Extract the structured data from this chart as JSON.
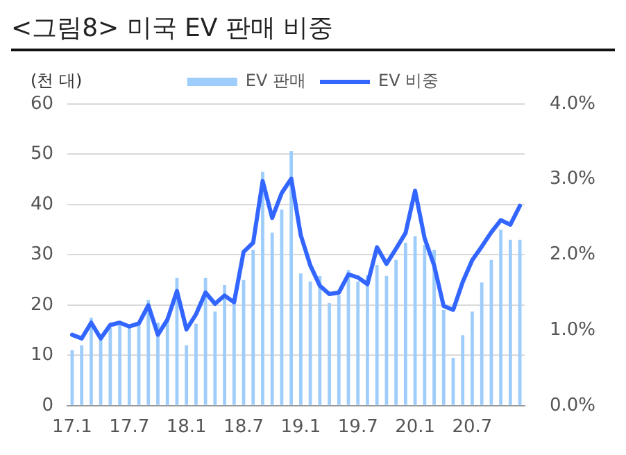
{
  "chart_data": {
    "type": "bar",
    "title": "<그림8> 미국 EV 판매 비중",
    "ylabel": "(천 대)",
    "categories": [
      "17.1",
      null,
      null,
      null,
      null,
      null,
      "17.7",
      null,
      null,
      null,
      null,
      null,
      "18.1",
      null,
      null,
      null,
      null,
      null,
      "18.7",
      null,
      null,
      null,
      null,
      null,
      "19.1",
      null,
      null,
      null,
      null,
      null,
      "19.7",
      null,
      null,
      null,
      null,
      null,
      "20.1",
      null,
      null,
      null,
      null,
      null,
      "20.7",
      null,
      null,
      null,
      null,
      null
    ],
    "series": [
      {
        "name": "EV 판매",
        "color": "#9fcdfb",
        "values": [
          11,
          12,
          17.5,
          13,
          15.5,
          16,
          15.5,
          16,
          21,
          16.5,
          17.5,
          25.4,
          12,
          16.3,
          25.4,
          18.7,
          24,
          21,
          25,
          31,
          46.5,
          34.4,
          39,
          50.6,
          26.3,
          24.7,
          25.8,
          20.4,
          22,
          27,
          24.7,
          26,
          28,
          25.8,
          29,
          32.4,
          33.7,
          32,
          31,
          19,
          9.5,
          14,
          18.7,
          24.5,
          29,
          35,
          33,
          33
        ]
      },
      {
        "name": "EV 비중",
        "type": "line",
        "axis": "y2",
        "color": "#3366ff",
        "values": [
          0.94,
          0.89,
          1.1,
          0.89,
          1.07,
          1.1,
          1.05,
          1.09,
          1.33,
          0.94,
          1.14,
          1.52,
          1.01,
          1.21,
          1.5,
          1.35,
          1.46,
          1.37,
          2.04,
          2.16,
          2.98,
          2.49,
          2.82,
          3.01,
          2.26,
          1.86,
          1.59,
          1.48,
          1.5,
          1.74,
          1.7,
          1.61,
          2.1,
          1.88,
          2.08,
          2.29,
          2.85,
          2.22,
          1.86,
          1.32,
          1.27,
          1.64,
          1.93,
          2.11,
          2.3,
          2.46,
          2.4,
          2.65
        ]
      }
    ],
    "ylim": [
      0,
      60
    ],
    "yticks": [
      0,
      10,
      20,
      30,
      40,
      50,
      60
    ],
    "y2lim": [
      0,
      4
    ],
    "y2ticks": [
      {
        "value": 0,
        "label": "0.0%"
      },
      {
        "value": 1,
        "label": "1.0%"
      },
      {
        "value": 2,
        "label": "2.0%"
      },
      {
        "value": 3,
        "label": "3.0%"
      },
      {
        "value": 4,
        "label": "4.0%"
      }
    ],
    "grid": "y",
    "legend": "top",
    "marker": "none",
    "line_style": "solid"
  }
}
